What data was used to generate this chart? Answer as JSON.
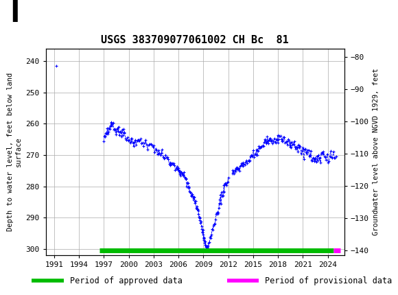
{
  "title": "USGS 383709077061002 CH Bc  81",
  "ylabel_left": "Depth to water level, feet below land\nsurface",
  "ylabel_right": "Groundwater level above NGVD 1929, feet",
  "ylim_left": [
    302,
    236
  ],
  "ylim_right": [
    -141.5,
    -77.5
  ],
  "yticks_left": [
    240,
    250,
    260,
    270,
    280,
    290,
    300
  ],
  "yticks_right": [
    -80,
    -90,
    -100,
    -110,
    -120,
    -130,
    -140
  ],
  "xlim": [
    1990.0,
    2026.0
  ],
  "xticks": [
    1991,
    1994,
    1997,
    2000,
    2003,
    2006,
    2009,
    2012,
    2015,
    2018,
    2021,
    2024
  ],
  "data_color": "#0000FF",
  "approved_color": "#00BB00",
  "provisional_color": "#FF00FF",
  "background_color": "#FFFFFF",
  "header_color": "#006633",
  "grid_color": "#AAAAAA",
  "title_fontsize": 11,
  "axis_label_fontsize": 7.5,
  "tick_fontsize": 8,
  "legend_fontsize": 8.5,
  "approved_bar_start": 1996.5,
  "approved_bar_end": 2024.7,
  "provisional_bar_start": 2024.7,
  "provisional_bar_end": 2025.5,
  "single_point_t": 1991.3,
  "single_point_d": 241.5
}
